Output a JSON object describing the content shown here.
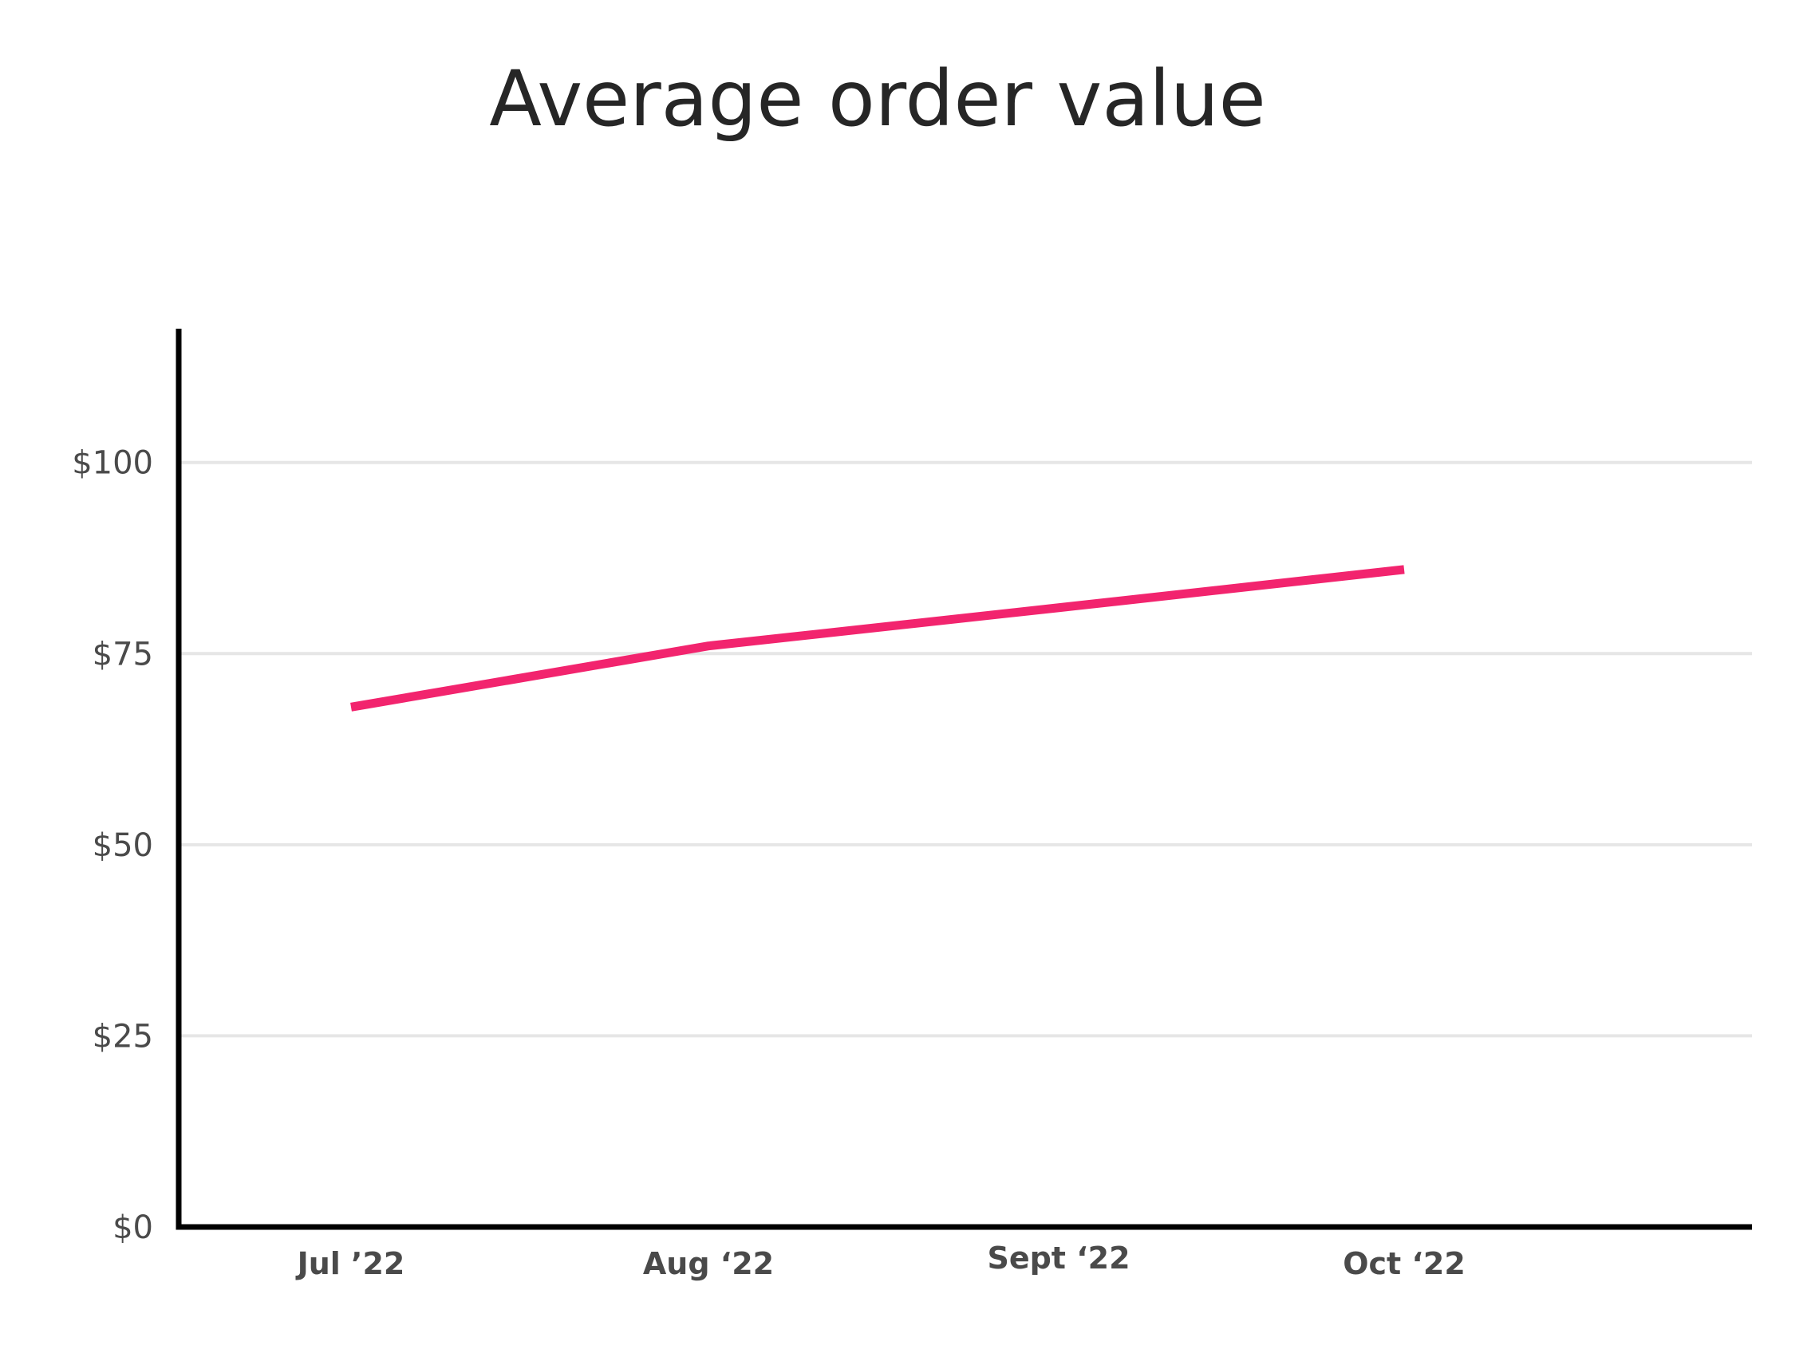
{
  "chart_data": {
    "type": "line",
    "title": "Average order value",
    "xlabel": "",
    "ylabel": "",
    "categories": [
      "Jul ’22",
      "Aug ‘22",
      "Sept ‘22",
      "Oct ‘22"
    ],
    "series": [
      {
        "values": [
          68,
          76,
          81,
          86
        ],
        "color": "#f2246e"
      }
    ],
    "y_ticks": [
      {
        "value": 0,
        "label": "$0"
      },
      {
        "value": 25,
        "label": "$25"
      },
      {
        "value": 50,
        "label": "$50"
      },
      {
        "value": 75,
        "label": "$75"
      },
      {
        "value": 100,
        "label": "$100"
      }
    ],
    "ylim": [
      0,
      117.5
    ],
    "grid": true,
    "legend": "none"
  }
}
